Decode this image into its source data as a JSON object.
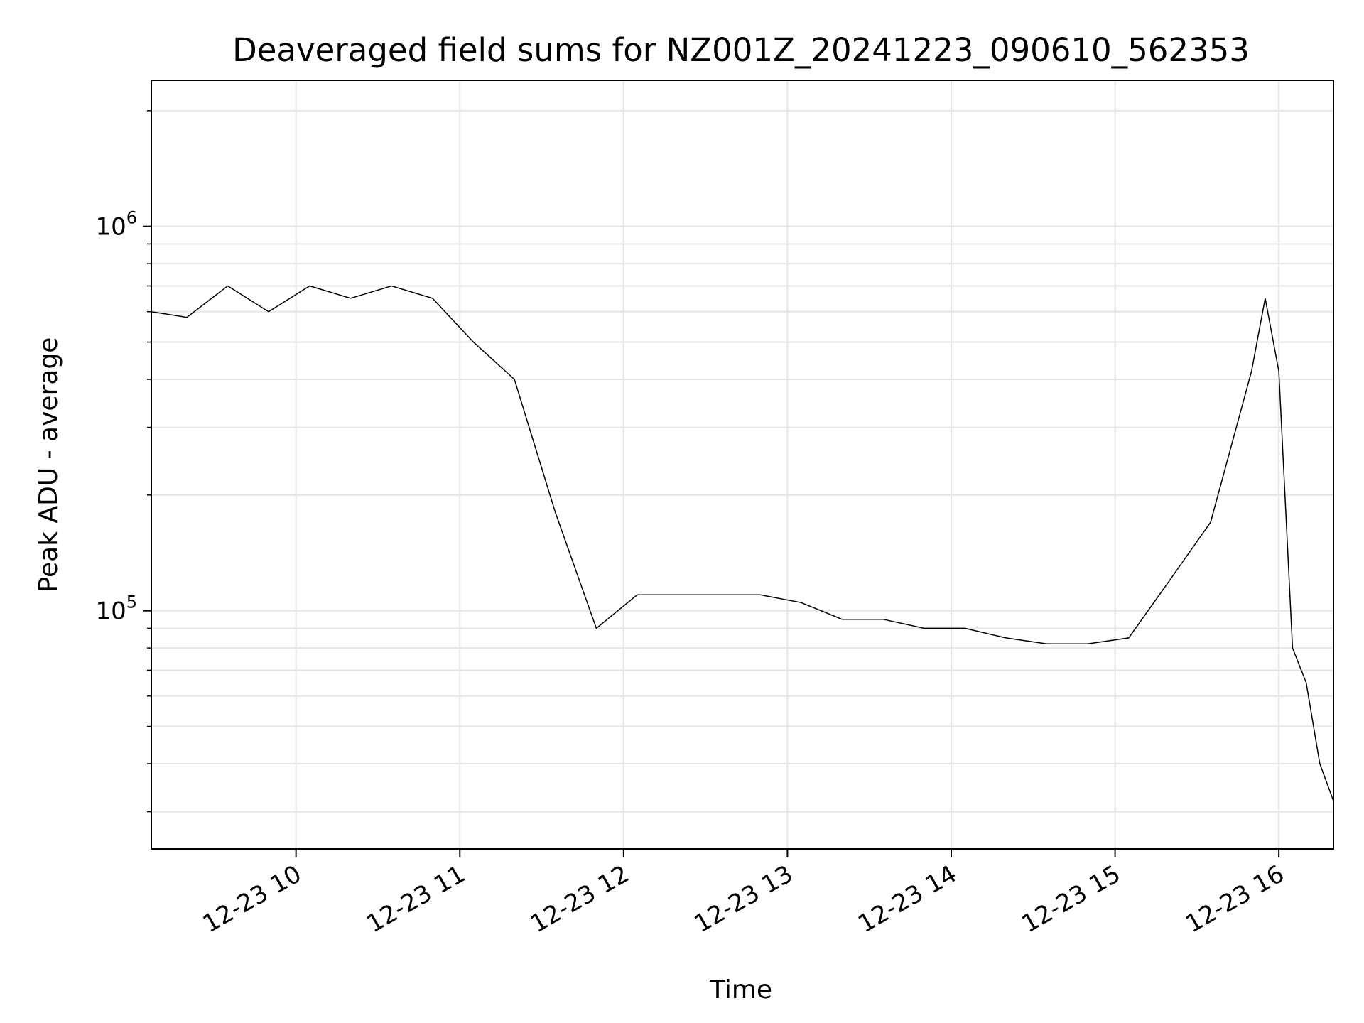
{
  "chart_data": {
    "type": "line",
    "title": "Deaveraged field sums for NZ001Z_20241223_090610_562353",
    "xlabel": "Time",
    "ylabel": "Peak ADU - average",
    "yscale": "log",
    "xlim": [
      "2024-12-23 09:07",
      "2024-12-23 16:20"
    ],
    "ylim": [
      24000,
      2400000
    ],
    "x_ticks": [
      "12-23 10",
      "12-23 11",
      "12-23 12",
      "12-23 13",
      "12-23 14",
      "12-23 15",
      "12-23 16"
    ],
    "y_ticks": [
      {
        "base": "10",
        "exp": "5",
        "value": 100000
      },
      {
        "base": "10",
        "exp": "6",
        "value": 1000000
      }
    ],
    "grid": true,
    "line_color": "#000000",
    "series": [
      {
        "name": "",
        "x": [
          "2024-12-23 09:07",
          "2024-12-23 09:20",
          "2024-12-23 09:35",
          "2024-12-23 09:50",
          "2024-12-23 10:05",
          "2024-12-23 10:20",
          "2024-12-23 10:35",
          "2024-12-23 10:50",
          "2024-12-23 11:05",
          "2024-12-23 11:20",
          "2024-12-23 11:35",
          "2024-12-23 11:50",
          "2024-12-23 12:05",
          "2024-12-23 12:20",
          "2024-12-23 12:35",
          "2024-12-23 12:50",
          "2024-12-23 13:05",
          "2024-12-23 13:20",
          "2024-12-23 13:35",
          "2024-12-23 13:50",
          "2024-12-23 14:05",
          "2024-12-23 14:20",
          "2024-12-23 14:35",
          "2024-12-23 14:50",
          "2024-12-23 15:05",
          "2024-12-23 15:20",
          "2024-12-23 15:35",
          "2024-12-23 15:50",
          "2024-12-23 15:55",
          "2024-12-23 16:00",
          "2024-12-23 16:05",
          "2024-12-23 16:10",
          "2024-12-23 16:15",
          "2024-12-23 16:20"
        ],
        "y": [
          600000,
          580000,
          700000,
          600000,
          700000,
          650000,
          700000,
          650000,
          500000,
          400000,
          180000,
          90000,
          110000,
          110000,
          110000,
          110000,
          105000,
          95000,
          95000,
          90000,
          90000,
          85000,
          82000,
          82000,
          85000,
          120000,
          170000,
          420000,
          650000,
          420000,
          80000,
          65000,
          40000,
          32000
        ]
      }
    ]
  }
}
